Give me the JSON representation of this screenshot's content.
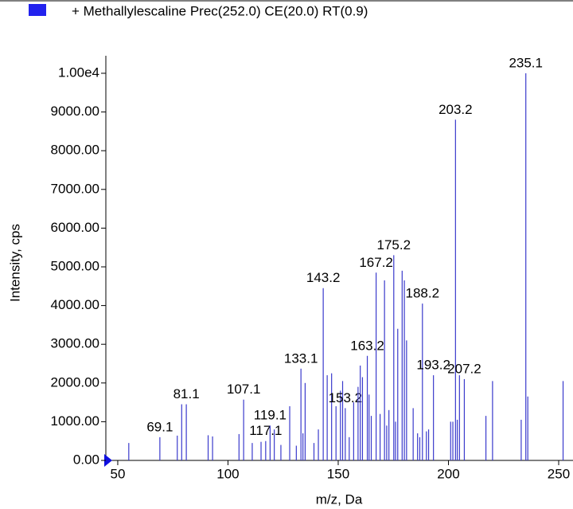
{
  "chart_data": {
    "type": "stem",
    "legend": "+ Methallylescaline Prec(252.0) CE(20.0) RT(0.9)",
    "x_label": "m/z, Da",
    "y_label": "Intensity, cps",
    "color": "#3a3acc",
    "x": [
      55,
      69.1,
      77,
      79,
      81.1,
      91,
      93,
      105,
      107.1,
      111,
      115,
      117.1,
      119.1,
      121,
      124,
      128,
      131,
      133.1,
      134,
      135,
      139,
      141,
      143.2,
      145,
      147,
      149,
      151,
      152,
      153.2,
      155,
      157,
      159,
      160,
      161,
      163.2,
      164,
      165,
      167.2,
      169,
      171,
      172,
      173,
      175.2,
      176,
      177,
      179,
      180,
      181,
      184,
      186,
      187,
      188.2,
      190,
      191,
      193.2,
      201,
      202,
      203.2,
      204,
      205,
      207.2,
      217,
      220,
      233,
      235.1,
      236,
      252
    ],
    "values": [
      450,
      600,
      640,
      1450,
      1450,
      650,
      620,
      680,
      1570,
      450,
      480,
      500,
      900,
      800,
      400,
      1400,
      380,
      2370,
      700,
      2000,
      450,
      800,
      4450,
      2200,
      2250,
      1400,
      1800,
      2050,
      1350,
      600,
      1500,
      1900,
      2450,
      2150,
      2700,
      1700,
      1150,
      4850,
      1200,
      4650,
      900,
      1300,
      5300,
      1000,
      3400,
      4900,
      4650,
      3100,
      1350,
      700,
      600,
      4050,
      750,
      800,
      2200,
      1000,
      1000,
      8800,
      1050,
      2200,
      2100,
      1150,
      2050,
      1050,
      10000,
      1650,
      2050
    ],
    "peak_labels": [
      null,
      "69.1",
      null,
      null,
      "81.1",
      null,
      null,
      null,
      "107.1",
      null,
      null,
      "117.1",
      "119.1",
      null,
      null,
      null,
      null,
      "133.1",
      null,
      null,
      null,
      null,
      "143.2",
      null,
      null,
      null,
      null,
      null,
      "153.2",
      null,
      null,
      null,
      null,
      null,
      "163.2",
      null,
      null,
      "167.2",
      null,
      null,
      null,
      null,
      "175.2",
      null,
      null,
      null,
      null,
      null,
      null,
      null,
      null,
      "188.2",
      null,
      null,
      "193.2",
      null,
      null,
      "203.2",
      null,
      null,
      "207.2",
      null,
      null,
      null,
      "235.1",
      null,
      null
    ],
    "xlim": [
      44.6,
      256.5
    ],
    "xticks": [
      50,
      100,
      150,
      200,
      250
    ],
    "ylim": [
      0,
      10300
    ],
    "yticks": [
      {
        "value": 0,
        "label": "0.00"
      },
      {
        "value": 1000,
        "label": "1000.00"
      },
      {
        "value": 2000,
        "label": "2000.00"
      },
      {
        "value": 3000,
        "label": "3000.00"
      },
      {
        "value": 4000,
        "label": "4000.00"
      },
      {
        "value": 5000,
        "label": "5000.00"
      },
      {
        "value": 6000,
        "label": "6000.00"
      },
      {
        "value": 7000,
        "label": "7000.00"
      },
      {
        "value": 8000,
        "label": "8000.00"
      },
      {
        "value": 9000,
        "label": "9000.00"
      },
      {
        "value": 10000,
        "label": "1.00e4"
      }
    ]
  }
}
